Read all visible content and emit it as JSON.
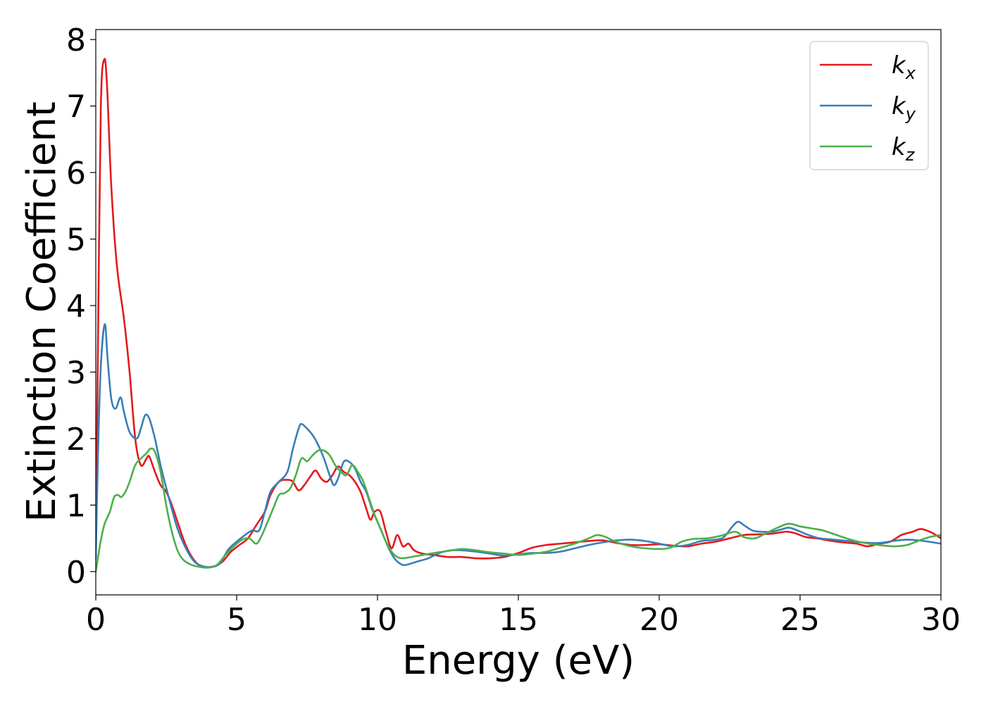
{
  "chart_data": {
    "type": "line",
    "title": "",
    "xlabel": "Energy (eV)",
    "ylabel": "Extinction Coefficient",
    "xlim": [
      0,
      30
    ],
    "ylim": [
      -0.35,
      8.15
    ],
    "xticks": [
      0,
      5,
      10,
      15,
      20,
      25,
      30
    ],
    "xtick_labels": [
      "0",
      "5",
      "10",
      "15",
      "20",
      "25",
      "30"
    ],
    "yticks": [
      0,
      1,
      2,
      3,
      4,
      5,
      6,
      7,
      8
    ],
    "ytick_labels": [
      "0",
      "1",
      "2",
      "3",
      "4",
      "5",
      "6",
      "7",
      "8"
    ],
    "grid": false,
    "legend_position": "top-right",
    "series": [
      {
        "name": "k",
        "name_sub": "x",
        "color": "#e41a1c",
        "points": [
          [
            0,
            0.3
          ],
          [
            0.08,
            3.5
          ],
          [
            0.18,
            7.0
          ],
          [
            0.3,
            7.7
          ],
          [
            0.4,
            7.3
          ],
          [
            0.55,
            5.8
          ],
          [
            0.75,
            4.6
          ],
          [
            1.0,
            3.8
          ],
          [
            1.2,
            3.0
          ],
          [
            1.4,
            2.0
          ],
          [
            1.6,
            1.6
          ],
          [
            1.8,
            1.7
          ],
          [
            1.9,
            1.73
          ],
          [
            2.1,
            1.5
          ],
          [
            2.3,
            1.3
          ],
          [
            2.5,
            1.2
          ],
          [
            2.7,
            1.0
          ],
          [
            2.9,
            0.75
          ],
          [
            3.1,
            0.5
          ],
          [
            3.3,
            0.3
          ],
          [
            3.6,
            0.12
          ],
          [
            3.9,
            0.07
          ],
          [
            4.2,
            0.08
          ],
          [
            4.5,
            0.15
          ],
          [
            4.8,
            0.3
          ],
          [
            5.1,
            0.4
          ],
          [
            5.4,
            0.5
          ],
          [
            5.7,
            0.7
          ],
          [
            6.0,
            0.9
          ],
          [
            6.2,
            1.15
          ],
          [
            6.5,
            1.35
          ],
          [
            6.8,
            1.38
          ],
          [
            7.0,
            1.35
          ],
          [
            7.2,
            1.22
          ],
          [
            7.4,
            1.3
          ],
          [
            7.6,
            1.42
          ],
          [
            7.8,
            1.52
          ],
          [
            8.0,
            1.4
          ],
          [
            8.2,
            1.35
          ],
          [
            8.4,
            1.45
          ],
          [
            8.6,
            1.58
          ],
          [
            8.8,
            1.5
          ],
          [
            9.0,
            1.45
          ],
          [
            9.2,
            1.35
          ],
          [
            9.4,
            1.2
          ],
          [
            9.6,
            0.95
          ],
          [
            9.75,
            0.78
          ],
          [
            9.9,
            0.9
          ],
          [
            10.1,
            0.9
          ],
          [
            10.3,
            0.6
          ],
          [
            10.5,
            0.35
          ],
          [
            10.7,
            0.55
          ],
          [
            10.9,
            0.38
          ],
          [
            11.1,
            0.42
          ],
          [
            11.3,
            0.32
          ],
          [
            11.6,
            0.27
          ],
          [
            12.0,
            0.25
          ],
          [
            12.5,
            0.22
          ],
          [
            13.0,
            0.22
          ],
          [
            13.5,
            0.2
          ],
          [
            14.0,
            0.2
          ],
          [
            14.5,
            0.22
          ],
          [
            15.0,
            0.28
          ],
          [
            15.5,
            0.36
          ],
          [
            16.0,
            0.4
          ],
          [
            16.5,
            0.42
          ],
          [
            17.0,
            0.44
          ],
          [
            17.5,
            0.46
          ],
          [
            18.0,
            0.47
          ],
          [
            18.5,
            0.43
          ],
          [
            19.0,
            0.4
          ],
          [
            19.5,
            0.4
          ],
          [
            20.0,
            0.41
          ],
          [
            20.5,
            0.39
          ],
          [
            21.0,
            0.38
          ],
          [
            21.5,
            0.42
          ],
          [
            22.0,
            0.45
          ],
          [
            22.5,
            0.5
          ],
          [
            23.0,
            0.55
          ],
          [
            23.5,
            0.56
          ],
          [
            24.0,
            0.57
          ],
          [
            24.5,
            0.6
          ],
          [
            24.8,
            0.58
          ],
          [
            25.2,
            0.52
          ],
          [
            25.6,
            0.5
          ],
          [
            26.0,
            0.47
          ],
          [
            26.5,
            0.44
          ],
          [
            27.0,
            0.42
          ],
          [
            27.4,
            0.38
          ],
          [
            27.8,
            0.42
          ],
          [
            28.2,
            0.45
          ],
          [
            28.6,
            0.55
          ],
          [
            29.0,
            0.6
          ],
          [
            29.3,
            0.64
          ],
          [
            29.7,
            0.58
          ],
          [
            30.0,
            0.5
          ]
        ]
      },
      {
        "name": "k",
        "name_sub": "y",
        "color": "#377eb8",
        "points": [
          [
            0,
            0.2
          ],
          [
            0.08,
            1.8
          ],
          [
            0.18,
            3.1
          ],
          [
            0.32,
            3.72
          ],
          [
            0.42,
            3.2
          ],
          [
            0.55,
            2.6
          ],
          [
            0.7,
            2.45
          ],
          [
            0.88,
            2.62
          ],
          [
            1.0,
            2.4
          ],
          [
            1.2,
            2.1
          ],
          [
            1.45,
            2.0
          ],
          [
            1.6,
            2.15
          ],
          [
            1.75,
            2.35
          ],
          [
            1.9,
            2.3
          ],
          [
            2.1,
            2.0
          ],
          [
            2.3,
            1.6
          ],
          [
            2.6,
            1.1
          ],
          [
            2.9,
            0.65
          ],
          [
            3.2,
            0.35
          ],
          [
            3.5,
            0.15
          ],
          [
            3.8,
            0.08
          ],
          [
            4.1,
            0.07
          ],
          [
            4.4,
            0.12
          ],
          [
            4.7,
            0.33
          ],
          [
            5.0,
            0.45
          ],
          [
            5.3,
            0.55
          ],
          [
            5.55,
            0.62
          ],
          [
            5.8,
            0.62
          ],
          [
            6.0,
            0.9
          ],
          [
            6.2,
            1.2
          ],
          [
            6.5,
            1.35
          ],
          [
            6.8,
            1.5
          ],
          [
            7.0,
            1.85
          ],
          [
            7.2,
            2.15
          ],
          [
            7.3,
            2.22
          ],
          [
            7.5,
            2.15
          ],
          [
            7.7,
            2.05
          ],
          [
            7.9,
            1.9
          ],
          [
            8.1,
            1.7
          ],
          [
            8.3,
            1.45
          ],
          [
            8.45,
            1.3
          ],
          [
            8.6,
            1.4
          ],
          [
            8.8,
            1.65
          ],
          [
            9.0,
            1.65
          ],
          [
            9.2,
            1.55
          ],
          [
            9.4,
            1.35
          ],
          [
            9.6,
            1.2
          ],
          [
            9.8,
            0.95
          ],
          [
            10.0,
            0.75
          ],
          [
            10.2,
            0.55
          ],
          [
            10.4,
            0.35
          ],
          [
            10.6,
            0.2
          ],
          [
            10.8,
            0.12
          ],
          [
            11.0,
            0.1
          ],
          [
            11.4,
            0.15
          ],
          [
            11.8,
            0.2
          ],
          [
            12.2,
            0.28
          ],
          [
            12.6,
            0.32
          ],
          [
            13.0,
            0.32
          ],
          [
            13.5,
            0.3
          ],
          [
            14.0,
            0.27
          ],
          [
            14.5,
            0.24
          ],
          [
            15.0,
            0.26
          ],
          [
            15.5,
            0.28
          ],
          [
            16.0,
            0.28
          ],
          [
            16.5,
            0.3
          ],
          [
            17.0,
            0.35
          ],
          [
            17.5,
            0.4
          ],
          [
            18.0,
            0.44
          ],
          [
            18.5,
            0.47
          ],
          [
            19.0,
            0.48
          ],
          [
            19.5,
            0.46
          ],
          [
            20.0,
            0.42
          ],
          [
            20.5,
            0.38
          ],
          [
            21.0,
            0.4
          ],
          [
            21.5,
            0.46
          ],
          [
            22.0,
            0.48
          ],
          [
            22.3,
            0.52
          ],
          [
            22.6,
            0.68
          ],
          [
            22.8,
            0.75
          ],
          [
            23.0,
            0.7
          ],
          [
            23.3,
            0.62
          ],
          [
            23.6,
            0.6
          ],
          [
            24.0,
            0.6
          ],
          [
            24.3,
            0.63
          ],
          [
            24.6,
            0.66
          ],
          [
            24.9,
            0.62
          ],
          [
            25.3,
            0.55
          ],
          [
            25.7,
            0.5
          ],
          [
            26.2,
            0.48
          ],
          [
            26.7,
            0.46
          ],
          [
            27.2,
            0.44
          ],
          [
            27.8,
            0.43
          ],
          [
            28.3,
            0.46
          ],
          [
            28.8,
            0.48
          ],
          [
            29.4,
            0.46
          ],
          [
            30.0,
            0.42
          ]
        ]
      },
      {
        "name": "k",
        "name_sub": "z",
        "color": "#4daf4a",
        "points": [
          [
            0,
            0.0
          ],
          [
            0.15,
            0.4
          ],
          [
            0.3,
            0.7
          ],
          [
            0.5,
            0.9
          ],
          [
            0.65,
            1.12
          ],
          [
            0.8,
            1.15
          ],
          [
            0.9,
            1.12
          ],
          [
            1.05,
            1.2
          ],
          [
            1.2,
            1.35
          ],
          [
            1.4,
            1.6
          ],
          [
            1.6,
            1.7
          ],
          [
            1.8,
            1.78
          ],
          [
            1.95,
            1.85
          ],
          [
            2.1,
            1.8
          ],
          [
            2.3,
            1.5
          ],
          [
            2.5,
            1.0
          ],
          [
            2.7,
            0.6
          ],
          [
            2.9,
            0.32
          ],
          [
            3.1,
            0.18
          ],
          [
            3.4,
            0.1
          ],
          [
            3.7,
            0.07
          ],
          [
            4.0,
            0.06
          ],
          [
            4.3,
            0.1
          ],
          [
            4.6,
            0.25
          ],
          [
            4.9,
            0.38
          ],
          [
            5.2,
            0.48
          ],
          [
            5.45,
            0.5
          ],
          [
            5.7,
            0.42
          ],
          [
            5.9,
            0.55
          ],
          [
            6.1,
            0.75
          ],
          [
            6.3,
            0.95
          ],
          [
            6.5,
            1.15
          ],
          [
            6.7,
            1.18
          ],
          [
            6.9,
            1.25
          ],
          [
            7.1,
            1.45
          ],
          [
            7.3,
            1.7
          ],
          [
            7.5,
            1.66
          ],
          [
            7.7,
            1.75
          ],
          [
            7.9,
            1.82
          ],
          [
            8.1,
            1.82
          ],
          [
            8.3,
            1.75
          ],
          [
            8.5,
            1.6
          ],
          [
            8.7,
            1.5
          ],
          [
            8.9,
            1.45
          ],
          [
            9.1,
            1.6
          ],
          [
            9.3,
            1.5
          ],
          [
            9.5,
            1.35
          ],
          [
            9.7,
            1.1
          ],
          [
            9.9,
            0.85
          ],
          [
            10.1,
            0.65
          ],
          [
            10.3,
            0.45
          ],
          [
            10.5,
            0.3
          ],
          [
            10.7,
            0.22
          ],
          [
            10.9,
            0.2
          ],
          [
            11.2,
            0.22
          ],
          [
            11.6,
            0.25
          ],
          [
            12.0,
            0.28
          ],
          [
            12.5,
            0.31
          ],
          [
            13.0,
            0.34
          ],
          [
            13.5,
            0.32
          ],
          [
            14.0,
            0.29
          ],
          [
            14.5,
            0.27
          ],
          [
            15.0,
            0.25
          ],
          [
            15.5,
            0.27
          ],
          [
            16.0,
            0.3
          ],
          [
            16.5,
            0.36
          ],
          [
            17.0,
            0.42
          ],
          [
            17.5,
            0.5
          ],
          [
            17.8,
            0.55
          ],
          [
            18.1,
            0.52
          ],
          [
            18.5,
            0.44
          ],
          [
            19.0,
            0.38
          ],
          [
            19.5,
            0.35
          ],
          [
            20.0,
            0.34
          ],
          [
            20.4,
            0.36
          ],
          [
            20.8,
            0.45
          ],
          [
            21.2,
            0.49
          ],
          [
            21.7,
            0.5
          ],
          [
            22.2,
            0.54
          ],
          [
            22.7,
            0.6
          ],
          [
            23.0,
            0.52
          ],
          [
            23.4,
            0.5
          ],
          [
            23.8,
            0.58
          ],
          [
            24.2,
            0.66
          ],
          [
            24.6,
            0.72
          ],
          [
            25.0,
            0.68
          ],
          [
            25.4,
            0.65
          ],
          [
            25.8,
            0.62
          ],
          [
            26.3,
            0.55
          ],
          [
            26.8,
            0.48
          ],
          [
            27.3,
            0.43
          ],
          [
            27.8,
            0.4
          ],
          [
            28.3,
            0.38
          ],
          [
            28.8,
            0.4
          ],
          [
            29.3,
            0.48
          ],
          [
            29.7,
            0.53
          ],
          [
            30.0,
            0.55
          ]
        ]
      }
    ]
  }
}
